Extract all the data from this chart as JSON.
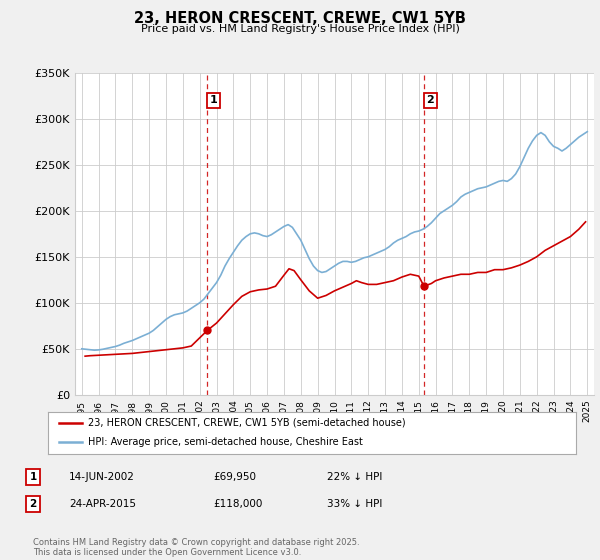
{
  "title": "23, HERON CRESCENT, CREWE, CW1 5YB",
  "subtitle": "Price paid vs. HM Land Registry's House Price Index (HPI)",
  "legend_label_red": "23, HERON CRESCENT, CREWE, CW1 5YB (semi-detached house)",
  "legend_label_blue": "HPI: Average price, semi-detached house, Cheshire East",
  "footnote": "Contains HM Land Registry data © Crown copyright and database right 2025.\nThis data is licensed under the Open Government Licence v3.0.",
  "ylim": [
    0,
    350000
  ],
  "yticks": [
    0,
    50000,
    100000,
    150000,
    200000,
    250000,
    300000,
    350000
  ],
  "ytick_labels": [
    "£0",
    "£50K",
    "£100K",
    "£150K",
    "£200K",
    "£250K",
    "£300K",
    "£350K"
  ],
  "background_color": "#f0f0f0",
  "plot_bg_color": "#ffffff",
  "grid_color": "#cccccc",
  "red_color": "#cc0000",
  "blue_color": "#7bafd4",
  "marker1_date": 2002.45,
  "marker1_price": 69950,
  "marker2_date": 2015.31,
  "marker2_price": 118000,
  "annotation1_date": "14-JUN-2002",
  "annotation1_price": "£69,950",
  "annotation1_hpi": "22% ↓ HPI",
  "annotation2_date": "24-APR-2015",
  "annotation2_price": "£118,000",
  "annotation2_hpi": "33% ↓ HPI",
  "hpi_data": {
    "years": [
      1995.0,
      1995.25,
      1995.5,
      1995.75,
      1996.0,
      1996.25,
      1996.5,
      1996.75,
      1997.0,
      1997.25,
      1997.5,
      1997.75,
      1998.0,
      1998.25,
      1998.5,
      1998.75,
      1999.0,
      1999.25,
      1999.5,
      1999.75,
      2000.0,
      2000.25,
      2000.5,
      2000.75,
      2001.0,
      2001.25,
      2001.5,
      2001.75,
      2002.0,
      2002.25,
      2002.5,
      2002.75,
      2003.0,
      2003.25,
      2003.5,
      2003.75,
      2004.0,
      2004.25,
      2004.5,
      2004.75,
      2005.0,
      2005.25,
      2005.5,
      2005.75,
      2006.0,
      2006.25,
      2006.5,
      2006.75,
      2007.0,
      2007.25,
      2007.5,
      2007.75,
      2008.0,
      2008.25,
      2008.5,
      2008.75,
      2009.0,
      2009.25,
      2009.5,
      2009.75,
      2010.0,
      2010.25,
      2010.5,
      2010.75,
      2011.0,
      2011.25,
      2011.5,
      2011.75,
      2012.0,
      2012.25,
      2012.5,
      2012.75,
      2013.0,
      2013.25,
      2013.5,
      2013.75,
      2014.0,
      2014.25,
      2014.5,
      2014.75,
      2015.0,
      2015.25,
      2015.5,
      2015.75,
      2016.0,
      2016.25,
      2016.5,
      2016.75,
      2017.0,
      2017.25,
      2017.5,
      2017.75,
      2018.0,
      2018.25,
      2018.5,
      2018.75,
      2019.0,
      2019.25,
      2019.5,
      2019.75,
      2020.0,
      2020.25,
      2020.5,
      2020.75,
      2021.0,
      2021.25,
      2021.5,
      2021.75,
      2022.0,
      2022.25,
      2022.5,
      2022.75,
      2023.0,
      2023.25,
      2023.5,
      2023.75,
      2024.0,
      2024.25,
      2024.5,
      2024.75,
      2025.0
    ],
    "values": [
      50000,
      49500,
      49000,
      48500,
      48800,
      49500,
      50500,
      51500,
      52500,
      54000,
      56000,
      57500,
      59000,
      61000,
      63000,
      65000,
      67000,
      70000,
      74000,
      78000,
      82000,
      85000,
      87000,
      88000,
      89000,
      91000,
      94000,
      97000,
      100000,
      104000,
      110000,
      116000,
      122000,
      130000,
      140000,
      148000,
      155000,
      162000,
      168000,
      172000,
      175000,
      176000,
      175000,
      173000,
      172000,
      174000,
      177000,
      180000,
      183000,
      185000,
      182000,
      175000,
      168000,
      158000,
      148000,
      140000,
      135000,
      133000,
      134000,
      137000,
      140000,
      143000,
      145000,
      145000,
      144000,
      145000,
      147000,
      149000,
      150000,
      152000,
      154000,
      156000,
      158000,
      161000,
      165000,
      168000,
      170000,
      172000,
      175000,
      177000,
      178000,
      180000,
      183000,
      187000,
      192000,
      197000,
      200000,
      203000,
      206000,
      210000,
      215000,
      218000,
      220000,
      222000,
      224000,
      225000,
      226000,
      228000,
      230000,
      232000,
      233000,
      232000,
      235000,
      240000,
      248000,
      258000,
      268000,
      276000,
      282000,
      285000,
      282000,
      275000,
      270000,
      268000,
      265000,
      268000,
      272000,
      276000,
      280000,
      283000,
      286000
    ]
  },
  "price_data": {
    "years": [
      1995.2,
      1995.5,
      1996.0,
      1996.5,
      1997.0,
      1997.5,
      1998.0,
      1998.5,
      1999.0,
      1999.5,
      2000.0,
      2000.5,
      2001.0,
      2001.5,
      2002.45,
      2003.0,
      2003.5,
      2004.0,
      2004.5,
      2005.0,
      2005.5,
      2006.0,
      2006.5,
      2007.0,
      2007.3,
      2007.6,
      2008.0,
      2008.5,
      2009.0,
      2009.5,
      2010.0,
      2010.5,
      2011.0,
      2011.3,
      2011.6,
      2012.0,
      2012.5,
      2013.0,
      2013.5,
      2014.0,
      2014.5,
      2015.0,
      2015.31,
      2015.75,
      2016.0,
      2016.5,
      2017.0,
      2017.5,
      2018.0,
      2018.5,
      2019.0,
      2019.5,
      2020.0,
      2020.5,
      2021.0,
      2021.5,
      2022.0,
      2022.5,
      2023.0,
      2023.5,
      2024.0,
      2024.5,
      2024.9
    ],
    "values": [
      42000,
      42500,
      43000,
      43500,
      44000,
      44500,
      45000,
      46000,
      47000,
      48000,
      49000,
      50000,
      51000,
      53000,
      69950,
      78000,
      88000,
      98000,
      107000,
      112000,
      114000,
      115000,
      118000,
      130000,
      137000,
      135000,
      125000,
      113000,
      105000,
      108000,
      113000,
      117000,
      121000,
      124000,
      122000,
      120000,
      120000,
      122000,
      124000,
      128000,
      131000,
      129000,
      118000,
      121000,
      124000,
      127000,
      129000,
      131000,
      131000,
      133000,
      133000,
      136000,
      136000,
      138000,
      141000,
      145000,
      150000,
      157000,
      162000,
      167000,
      172000,
      180000,
      188000
    ]
  }
}
